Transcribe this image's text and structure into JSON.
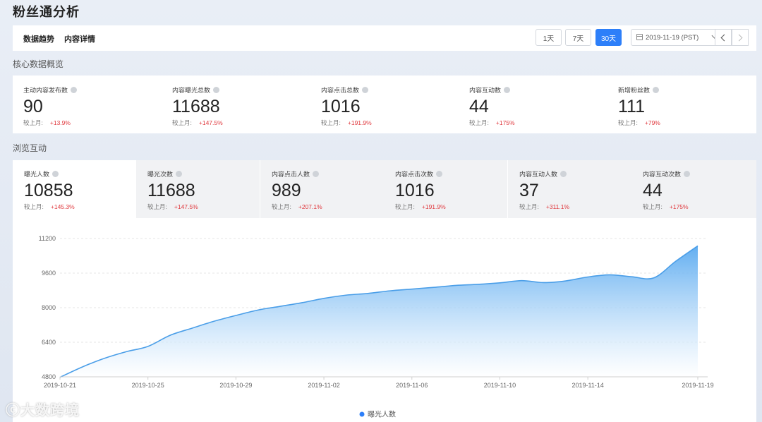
{
  "page": {
    "title": "粉丝通分析"
  },
  "toolbar": {
    "tabs": [
      {
        "label": "数据趋势"
      },
      {
        "label": "内容详情"
      }
    ],
    "ranges": [
      {
        "label": "1天"
      },
      {
        "label": "7天"
      },
      {
        "label": "30天",
        "active": true
      }
    ],
    "date": "2019-11-19 (PST)",
    "colors": {
      "accent": "#2d7ff9"
    }
  },
  "core": {
    "title": "核心数据概览",
    "compare_label": "较上月:",
    "metrics": [
      {
        "label": "主动内容发布数",
        "value": "90",
        "change": "+13.9%"
      },
      {
        "label": "内容曝光总数",
        "value": "11688",
        "change": "+147.5%"
      },
      {
        "label": "内容点击总数",
        "value": "1016",
        "change": "+191.9%"
      },
      {
        "label": "内容互动数",
        "value": "44",
        "change": "+175%"
      },
      {
        "label": "新增粉丝数",
        "value": "111",
        "change": "+79%"
      }
    ]
  },
  "browse": {
    "title": "浏览互动",
    "compare_label": "较上月:",
    "tabs": [
      {
        "label": "曝光人数",
        "value": "10858",
        "change": "+145.3%",
        "active": true
      },
      {
        "label": "曝光次数",
        "value": "11688",
        "change": "+147.5%"
      },
      {
        "label": "内容点击人数",
        "value": "989",
        "change": "+207.1%"
      },
      {
        "label": "内容点击次数",
        "value": "1016",
        "change": "+191.9%"
      },
      {
        "label": "内容互动人数",
        "value": "37",
        "change": "+311.1%"
      },
      {
        "label": "内容互动次数",
        "value": "44",
        "change": "+175%"
      }
    ]
  },
  "chart_data": {
    "type": "area",
    "title": "",
    "xlabel": "",
    "ylabel": "",
    "ylim": [
      4800,
      11200
    ],
    "yticks": [
      4800,
      6400,
      8000,
      9600,
      11200
    ],
    "xticks": [
      "2019-10-21",
      "2019-10-25",
      "2019-10-29",
      "2019-11-02",
      "2019-11-06",
      "2019-11-10",
      "2019-11-14",
      "2019-11-19"
    ],
    "x": [
      "2019-10-21",
      "2019-10-22",
      "2019-10-23",
      "2019-10-24",
      "2019-10-25",
      "2019-10-26",
      "2019-10-27",
      "2019-10-28",
      "2019-10-29",
      "2019-10-30",
      "2019-10-31",
      "2019-11-01",
      "2019-11-02",
      "2019-11-03",
      "2019-11-04",
      "2019-11-05",
      "2019-11-06",
      "2019-11-07",
      "2019-11-08",
      "2019-11-09",
      "2019-11-10",
      "2019-11-11",
      "2019-11-12",
      "2019-11-13",
      "2019-11-14",
      "2019-11-15",
      "2019-11-16",
      "2019-11-17",
      "2019-11-18",
      "2019-11-19"
    ],
    "series": [
      {
        "name": "曝光人数",
        "color": "#4a9ee8",
        "values": [
          4780,
          5250,
          5650,
          5960,
          6210,
          6720,
          7050,
          7370,
          7640,
          7890,
          8060,
          8230,
          8430,
          8580,
          8660,
          8780,
          8860,
          8940,
          9030,
          9080,
          9150,
          9250,
          9160,
          9240,
          9420,
          9520,
          9430,
          9380,
          10150,
          10860
        ]
      }
    ],
    "grid": true,
    "legend": "bottom-center"
  }
}
